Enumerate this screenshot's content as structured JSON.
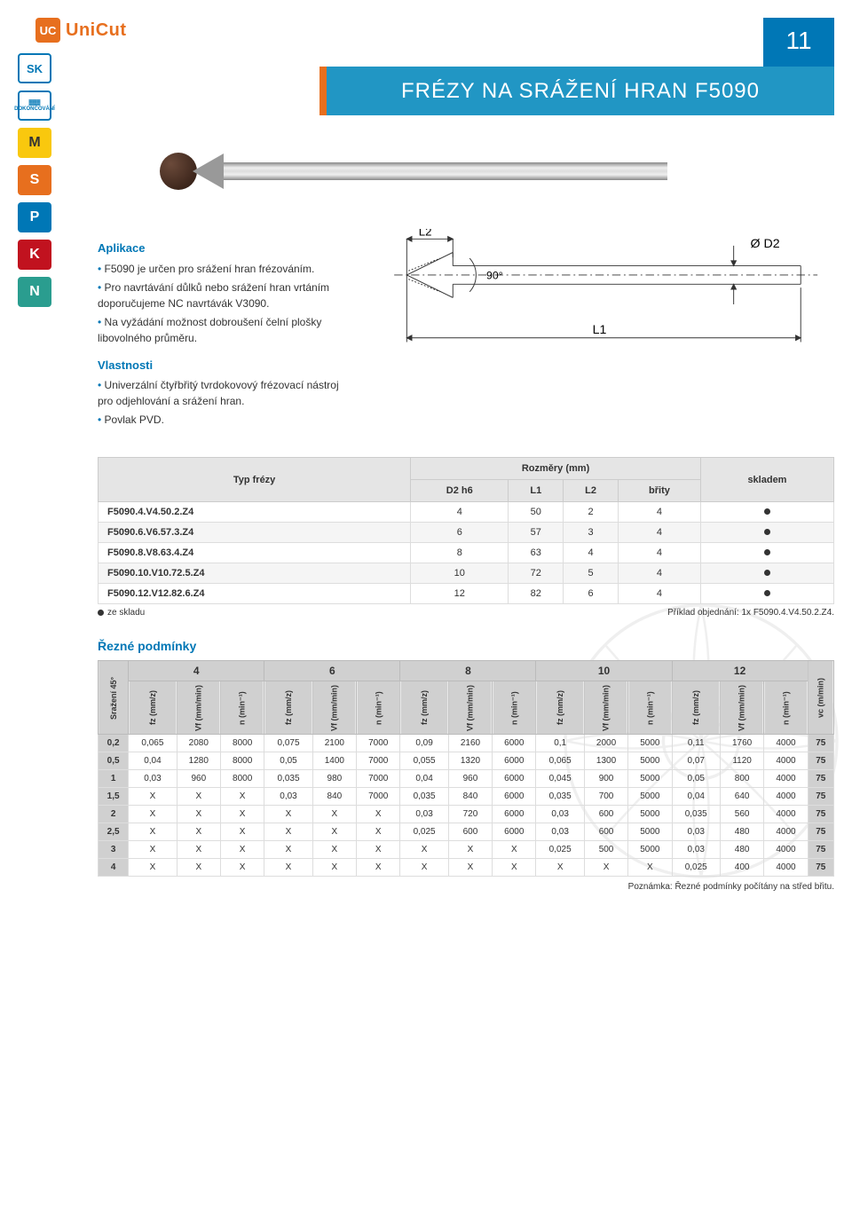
{
  "brand": {
    "name": "UniCut",
    "icon_text": "UC"
  },
  "page_number": "11",
  "title": "FRÉZY NA SRÁŽENÍ HRAN F5090",
  "badges": {
    "sk": "SK",
    "finish_top": "▓▓▓",
    "finish_label": "DOKONČOVÁNÍ",
    "m": "M",
    "s": "S",
    "p": "P",
    "k": "K",
    "n": "N"
  },
  "application": {
    "heading": "Aplikace",
    "items": [
      "F5090 je určen pro srážení hran frézováním.",
      "Pro navrtávání důlků nebo srážení hran vrtáním doporučujeme NC navrtávák V3090.",
      "Na vyžádání možnost dobroušení čelní plošky libovolného průměru."
    ]
  },
  "properties": {
    "heading": "Vlastnosti",
    "items": [
      "Univerzální čtyřbřitý tvrdokovový frézovací nástroj pro odjehlování a srážení hran.",
      "Povlak PVD."
    ]
  },
  "diagram_labels": {
    "l1": "L1",
    "l2": "L2",
    "d2": "Ø D2",
    "angle": "90°"
  },
  "dim_table": {
    "header_type": "Typ frézy",
    "header_dims": "Rozměry (mm)",
    "header_stock": "skladem",
    "cols": [
      "D2 h6",
      "L1",
      "L2",
      "břity"
    ],
    "rows": [
      {
        "type": "F5090.4.V4.50.2.Z4",
        "vals": [
          "4",
          "50",
          "2",
          "4"
        ],
        "stock": true
      },
      {
        "type": "F5090.6.V6.57.3.Z4",
        "vals": [
          "6",
          "57",
          "3",
          "4"
        ],
        "stock": true
      },
      {
        "type": "F5090.8.V8.63.4.Z4",
        "vals": [
          "8",
          "63",
          "4",
          "4"
        ],
        "stock": true
      },
      {
        "type": "F5090.10.V10.72.5.Z4",
        "vals": [
          "10",
          "72",
          "5",
          "4"
        ],
        "stock": true
      },
      {
        "type": "F5090.12.V12.82.6.Z4",
        "vals": [
          "12",
          "82",
          "6",
          "4"
        ],
        "stock": true
      }
    ],
    "note_stock": "ze skladu",
    "note_example": "Příklad objednání: 1x F5090.4.V4.50.2.Z4."
  },
  "cut": {
    "title": "Řezné podmínky",
    "row_head": "Sražení 45°",
    "diameters": [
      "4",
      "6",
      "8",
      "10",
      "12"
    ],
    "sub_cols": [
      "fz (mm/z)",
      "Vf (mm/min)",
      "n (min⁻¹)"
    ],
    "vc_col": "vc (m/min)",
    "rows": [
      {
        "h": "0,2",
        "cells": [
          "0,065",
          "2080",
          "8000",
          "0,075",
          "2100",
          "7000",
          "0,09",
          "2160",
          "6000",
          "0,1",
          "2000",
          "5000",
          "0,11",
          "1760",
          "4000"
        ],
        "vc": "75"
      },
      {
        "h": "0,5",
        "cells": [
          "0,04",
          "1280",
          "8000",
          "0,05",
          "1400",
          "7000",
          "0,055",
          "1320",
          "6000",
          "0,065",
          "1300",
          "5000",
          "0,07",
          "1120",
          "4000"
        ],
        "vc": "75"
      },
      {
        "h": "1",
        "cells": [
          "0,03",
          "960",
          "8000",
          "0,035",
          "980",
          "7000",
          "0,04",
          "960",
          "6000",
          "0,045",
          "900",
          "5000",
          "0,05",
          "800",
          "4000"
        ],
        "vc": "75"
      },
      {
        "h": "1,5",
        "cells": [
          "X",
          "X",
          "X",
          "0,03",
          "840",
          "7000",
          "0,035",
          "840",
          "6000",
          "0,035",
          "700",
          "5000",
          "0,04",
          "640",
          "4000"
        ],
        "vc": "75"
      },
      {
        "h": "2",
        "cells": [
          "X",
          "X",
          "X",
          "X",
          "X",
          "X",
          "0,03",
          "720",
          "6000",
          "0,03",
          "600",
          "5000",
          "0,035",
          "560",
          "4000"
        ],
        "vc": "75"
      },
      {
        "h": "2,5",
        "cells": [
          "X",
          "X",
          "X",
          "X",
          "X",
          "X",
          "0,025",
          "600",
          "6000",
          "0,03",
          "600",
          "5000",
          "0,03",
          "480",
          "4000"
        ],
        "vc": "75"
      },
      {
        "h": "3",
        "cells": [
          "X",
          "X",
          "X",
          "X",
          "X",
          "X",
          "X",
          "X",
          "X",
          "0,025",
          "500",
          "5000",
          "0,03",
          "480",
          "4000"
        ],
        "vc": "75"
      },
      {
        "h": "4",
        "cells": [
          "X",
          "X",
          "X",
          "X",
          "X",
          "X",
          "X",
          "X",
          "X",
          "X",
          "X",
          "X",
          "0,025",
          "400",
          "4000"
        ],
        "vc": "75"
      }
    ],
    "footnote": "Poznámka: Řezné podmínky počítány na střed břitu."
  },
  "colors": {
    "brand": "#e76f1e",
    "primary": "#0077b6",
    "title_bg": "#2196c4"
  }
}
